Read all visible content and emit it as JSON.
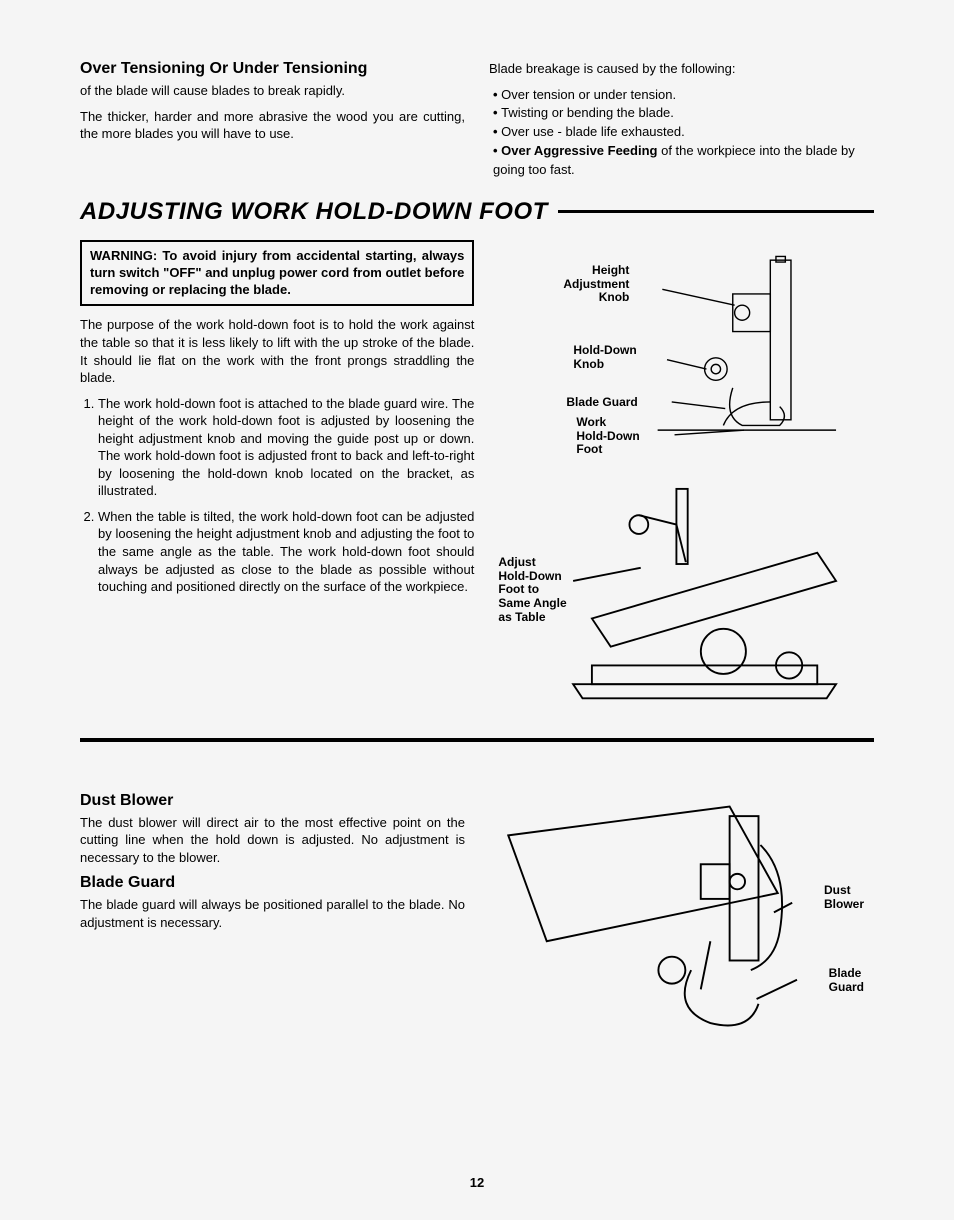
{
  "top": {
    "left": {
      "heading": "Over Tensioning Or Under Tensioning",
      "line1": "of the blade will cause blades to break rapidly.",
      "line2": "The thicker, harder and more abrasive the wood you are cutting, the more blades you will have to use."
    },
    "right": {
      "intro": "Blade breakage is caused by the following:",
      "bullets": [
        "Over tension or under tension.",
        "Twisting or bending the blade.",
        "Over use - blade life exhausted."
      ],
      "bullet4_bold": "Over Aggressive Feeding",
      "bullet4_rest": " of the workpiece into the blade by going too fast."
    }
  },
  "adjusting": {
    "heading": "ADJUSTING WORK HOLD-DOWN FOOT",
    "warning_bold": "WARNING: To avoid injury from accidental starting, always turn switch \"OFF\" and unplug power cord from outlet before removing or replacing the blade.",
    "intro": "The purpose of the work hold-down foot is to hold the work against the table so that it is less likely to lift with the up stroke of the blade. It should lie flat on the work with the front prongs straddling the blade.",
    "steps": [
      "The work hold-down foot is attached to the blade guard wire. The height of the work hold-down foot is adjusted by loosening the height adjustment knob and moving the guide post up or down. The work hold-down foot is adjusted front to back and left-to-right by loosening the hold-down knob located on the bracket, as illustrated.",
      "When the table is tilted, the work hold-down foot can be adjusted by loosening the height adjustment knob and adjusting the foot to the same angle as the table. The work hold-down foot should always be adjusted as close to the blade as possible without touching and positioned directly on the surface of the workpiece."
    ],
    "fig1_labels": {
      "height_knob": "Height\nAdjustment\nKnob",
      "holddown_knob": "Hold-Down\nKnob",
      "blade_guard": "Blade Guard",
      "work_holddown": "Work\nHold-Down\nFoot"
    },
    "fig2_label": "Adjust\nHold-Down\nFoot to\nSame Angle\nas Table"
  },
  "dust": {
    "heading": "Dust Blower",
    "text": "The dust blower will direct air to the most effective point on the cutting line when the hold down is adjusted. No adjustment is necessary to the blower."
  },
  "guard": {
    "heading": "Blade Guard",
    "text": "The blade guard will always be positioned parallel to the blade. No adjustment is necessary."
  },
  "fig3_labels": {
    "dust_blower": "Dust\nBlower",
    "blade_guard": "Blade\nGuard"
  },
  "page_number": "12"
}
